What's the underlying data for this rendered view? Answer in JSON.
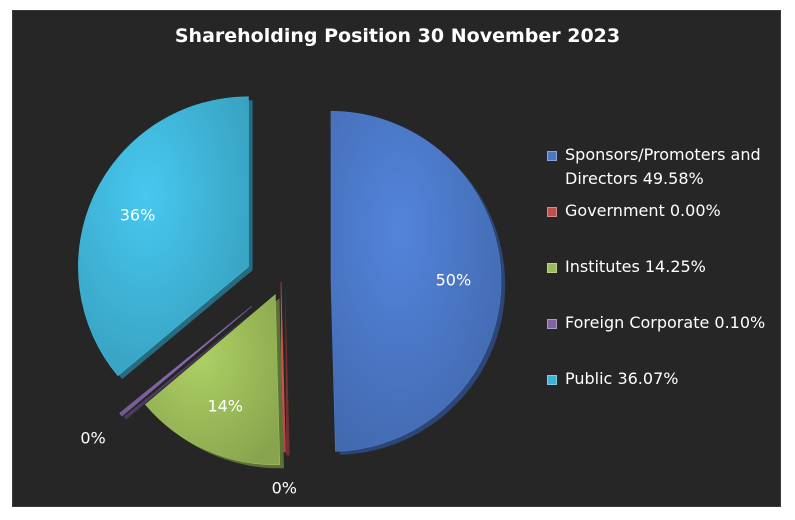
{
  "chart_data": {
    "type": "pie",
    "title": "Shareholding Position 30 November 2023",
    "slices": [
      {
        "name": "Sponsors/Promoters and Directors",
        "legend": "Sponsors/Promoters and Directors 49.58%",
        "value": 49.58,
        "label": "50%",
        "color": "#4a76c4"
      },
      {
        "name": "Government",
        "legend": "Government 0.00%",
        "value": 0.0,
        "label": "0%",
        "color": "#c0504d"
      },
      {
        "name": "Institutes",
        "legend": "Institutes 14.25%",
        "value": 14.25,
        "label": "14%",
        "color": "#9bbb59"
      },
      {
        "name": "Foreign Corporate",
        "legend": "Foreign Corporate 0.10%",
        "value": 0.1,
        "label": "0%",
        "color": "#8064a2"
      },
      {
        "name": "Public",
        "legend": "Public 36.07%",
        "value": 36.07,
        "label": "36%",
        "color": "#3fb3d6"
      }
    ],
    "legend_position": "right"
  }
}
